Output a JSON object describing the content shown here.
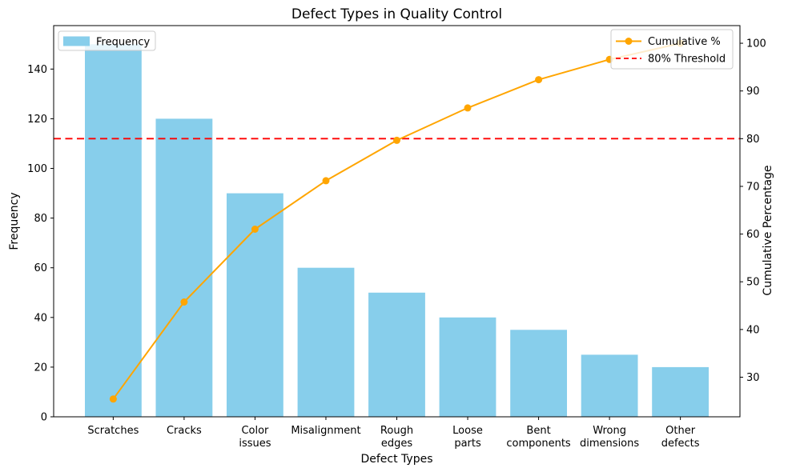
{
  "chart_data": {
    "type": "bar",
    "subtype": "pareto-combo",
    "title": "Defect Types in Quality Control",
    "xlabel": "Defect Types",
    "ylabel_left": "Frequency",
    "ylabel_right": "Cumulative Percentage",
    "categories": [
      "Scratches",
      "Cracks",
      "Color issues",
      "Misalignment",
      "Rough edges",
      "Loose parts",
      "Bent components",
      "Wrong dimensions",
      "Other defects"
    ],
    "series": [
      {
        "name": "Frequency",
        "type": "bar",
        "axis": "left",
        "color": "#87CEEB",
        "values": [
          150,
          120,
          90,
          60,
          50,
          40,
          35,
          25,
          20
        ]
      },
      {
        "name": "Cumulative %",
        "type": "line",
        "axis": "right",
        "color": "#FFA500",
        "marker": "circle",
        "values": [
          25.42,
          45.76,
          61.02,
          71.19,
          79.66,
          86.44,
          92.37,
          96.61,
          100.0
        ]
      }
    ],
    "threshold": {
      "label": "80% Threshold",
      "axis": "right",
      "value": 80,
      "color": "#FF0000",
      "style": "dashed"
    },
    "axes": {
      "yticks_left": [
        0,
        20,
        40,
        60,
        80,
        100,
        120,
        140
      ],
      "yticks_right": [
        30,
        40,
        50,
        60,
        70,
        80,
        90,
        100
      ],
      "ylim_left": [
        0,
        157.5
      ],
      "ylim_right": [
        21.7,
        103.7
      ],
      "grid": false,
      "spine_color": "#000000"
    },
    "legend_left_position": "upper left",
    "legend_right_position": "upper right"
  }
}
